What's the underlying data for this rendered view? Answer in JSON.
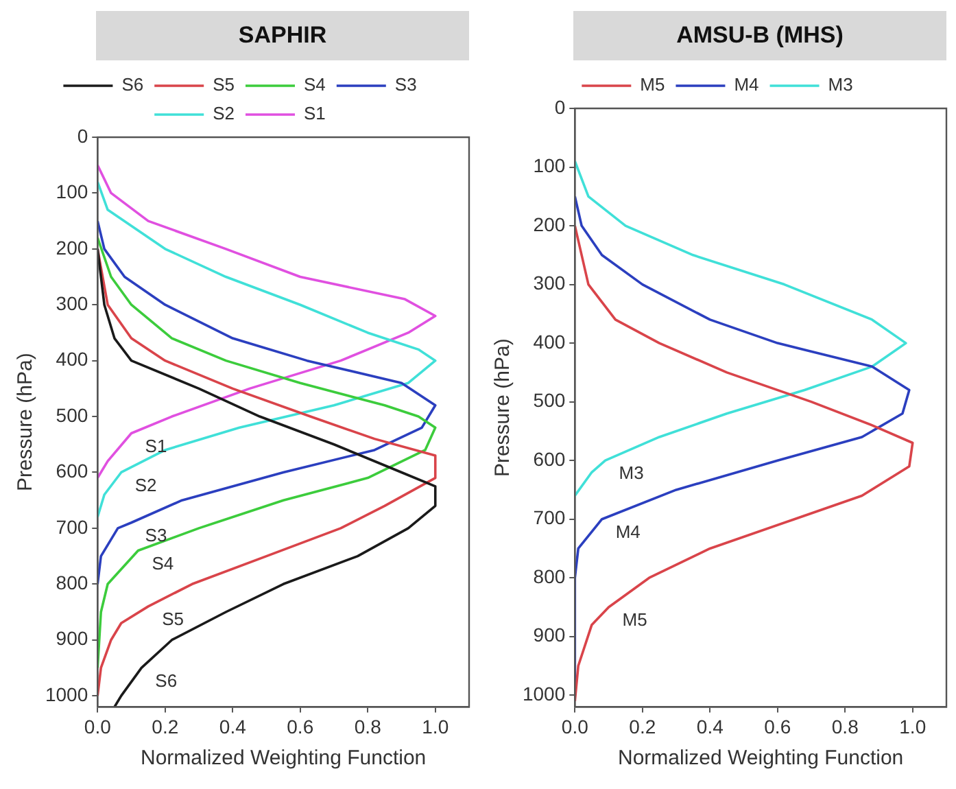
{
  "chart_data": [
    {
      "type": "line",
      "title": "SAPHIR",
      "xlabel": "Normalized Weighting Function",
      "ylabel": "Pressure (hPa)",
      "xlim": [
        0,
        1.1
      ],
      "xticks": [
        {
          "value": 0,
          "label": "0.0"
        },
        {
          "value": 0.2,
          "label": "0.2"
        },
        {
          "value": 0.4,
          "label": "0.4"
        },
        {
          "value": 0.6,
          "label": "0.6"
        },
        {
          "value": 0.8,
          "label": "0.8"
        },
        {
          "value": 1,
          "label": "1.0"
        }
      ],
      "ylim": [
        1020,
        0
      ],
      "yticks": [
        0,
        100,
        200,
        300,
        400,
        500,
        600,
        700,
        800,
        900,
        1000
      ],
      "grid": false,
      "legend": "top",
      "marker": "none",
      "line_style": "solid",
      "series": [
        {
          "name": "S6",
          "color": "#1a1a1a",
          "x": [
            0,
            0.02,
            0.05,
            0.1,
            0.3,
            0.48,
            0.7,
            0.9,
            1.0,
            1.0,
            0.92,
            0.77,
            0.55,
            0.38,
            0.22,
            0.13,
            0.07,
            0.05
          ],
          "values": [
            200,
            300,
            360,
            400,
            450,
            500,
            550,
            600,
            625,
            660,
            700,
            750,
            800,
            850,
            900,
            950,
            1000,
            1020
          ]
        },
        {
          "name": "S5",
          "color": "#d9444a",
          "x": [
            0,
            0.03,
            0.1,
            0.2,
            0.4,
            0.63,
            0.82,
            1.0,
            1.0,
            0.85,
            0.72,
            0.5,
            0.28,
            0.15,
            0.07,
            0.04,
            0.01,
            0
          ],
          "values": [
            200,
            300,
            360,
            400,
            450,
            500,
            540,
            570,
            610,
            660,
            700,
            750,
            800,
            840,
            870,
            900,
            950,
            1000
          ]
        },
        {
          "name": "S4",
          "color": "#3ccc3c",
          "x": [
            0,
            0.04,
            0.1,
            0.22,
            0.38,
            0.6,
            0.85,
            0.95,
            1.0,
            0.97,
            0.8,
            0.55,
            0.3,
            0.12,
            0.03,
            0.01,
            0
          ],
          "values": [
            180,
            250,
            300,
            360,
            400,
            440,
            480,
            500,
            520,
            560,
            610,
            650,
            700,
            740,
            800,
            850,
            950
          ]
        },
        {
          "name": "S3",
          "color": "#2b3fbf",
          "x": [
            0,
            0.02,
            0.08,
            0.2,
            0.4,
            0.62,
            0.9,
            1.0,
            0.96,
            0.82,
            0.55,
            0.25,
            0.1,
            0.06,
            0.01,
            0
          ],
          "values": [
            150,
            200,
            250,
            300,
            360,
            400,
            440,
            480,
            520,
            560,
            600,
            650,
            690,
            700,
            750,
            800
          ]
        },
        {
          "name": "S2",
          "color": "#40e0d8",
          "x": [
            0,
            0.03,
            0.2,
            0.38,
            0.6,
            0.8,
            0.95,
            1.0,
            0.92,
            0.7,
            0.42,
            0.2,
            0.07,
            0.02,
            0
          ],
          "values": [
            80,
            130,
            200,
            250,
            300,
            350,
            380,
            400,
            440,
            480,
            520,
            560,
            600,
            640,
            680
          ]
        },
        {
          "name": "S1",
          "color": "#e050e0",
          "x": [
            0,
            0.04,
            0.15,
            0.38,
            0.6,
            0.91,
            1.0,
            0.92,
            0.72,
            0.45,
            0.22,
            0.1,
            0.03,
            0
          ],
          "values": [
            50,
            100,
            150,
            200,
            250,
            290,
            320,
            350,
            400,
            450,
            500,
            530,
            580,
            610
          ]
        }
      ]
    },
    {
      "type": "line",
      "title": "AMSU-B (MHS)",
      "xlabel": "Normalized Weighting Function",
      "ylabel": "Pressure (hPa)",
      "xlim": [
        0,
        1.1
      ],
      "xticks": [
        {
          "value": 0,
          "label": "0.0"
        },
        {
          "value": 0.2,
          "label": "0.2"
        },
        {
          "value": 0.4,
          "label": "0.4"
        },
        {
          "value": 0.6,
          "label": "0.6"
        },
        {
          "value": 0.8,
          "label": "0.8"
        },
        {
          "value": 1,
          "label": "1.0"
        }
      ],
      "ylim": [
        1020,
        0
      ],
      "yticks": [
        0,
        100,
        200,
        300,
        400,
        500,
        600,
        700,
        800,
        900,
        1000
      ],
      "grid": false,
      "legend": "top",
      "marker": "none",
      "line_style": "solid",
      "series": [
        {
          "name": "M5",
          "color": "#d9444a",
          "x": [
            0,
            0.04,
            0.12,
            0.25,
            0.45,
            0.7,
            0.88,
            1.0,
            0.99,
            0.85,
            0.65,
            0.4,
            0.22,
            0.1,
            0.05,
            0.01,
            0
          ],
          "values": [
            200,
            300,
            360,
            400,
            450,
            500,
            540,
            570,
            610,
            660,
            700,
            750,
            800,
            850,
            880,
            950,
            1010
          ]
        },
        {
          "name": "M4",
          "color": "#2b3fbf",
          "x": [
            0,
            0.02,
            0.08,
            0.2,
            0.4,
            0.6,
            0.88,
            0.99,
            0.97,
            0.85,
            0.6,
            0.3,
            0.08,
            0.01,
            0,
            0
          ],
          "values": [
            150,
            200,
            250,
            300,
            360,
            400,
            440,
            480,
            520,
            560,
            600,
            650,
            700,
            750,
            800,
            1000
          ]
        },
        {
          "name": "M3",
          "color": "#40e0d8",
          "x": [
            0,
            0.04,
            0.15,
            0.35,
            0.62,
            0.88,
            0.98,
            0.88,
            0.68,
            0.45,
            0.25,
            0.09,
            0.05,
            0
          ],
          "values": [
            90,
            150,
            200,
            250,
            300,
            360,
            400,
            440,
            480,
            520,
            560,
            600,
            620,
            660
          ]
        }
      ]
    }
  ]
}
